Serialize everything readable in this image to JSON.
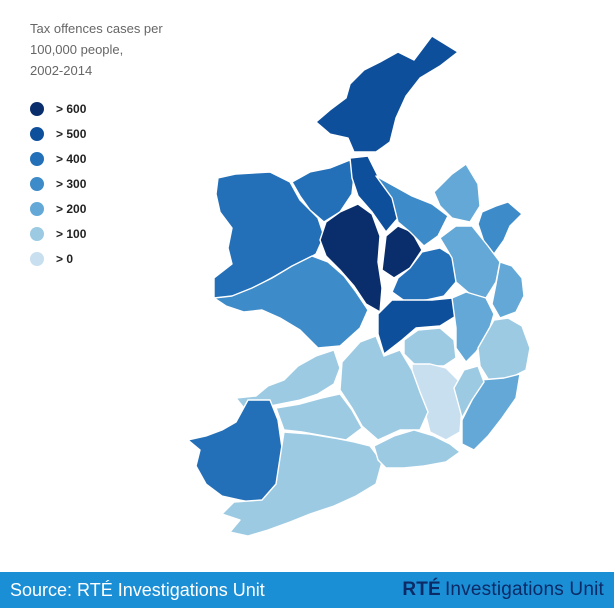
{
  "title_lines": [
    "Tax offences cases per",
    "100,000 people,",
    "2002-2014"
  ],
  "legend": [
    {
      "label": "> 600",
      "color": "#0a2e6b"
    },
    {
      "label": "> 500",
      "color": "#0e4f9c"
    },
    {
      "label": "> 400",
      "color": "#2370b8"
    },
    {
      "label": "> 300",
      "color": "#3d8bc8"
    },
    {
      "label": "> 200",
      "color": "#63a8d6"
    },
    {
      "label": "> 100",
      "color": "#9ccae2"
    },
    {
      "label": "> 0",
      "color": "#c8dff0"
    }
  ],
  "regions": [
    {
      "name": "donegal",
      "bin": 1
    },
    {
      "name": "mayo",
      "bin": 2
    },
    {
      "name": "sligo",
      "bin": 2
    },
    {
      "name": "leitrim",
      "bin": 1
    },
    {
      "name": "roscommon",
      "bin": 0
    },
    {
      "name": "longford",
      "bin": 0
    },
    {
      "name": "westmeath",
      "bin": 2
    },
    {
      "name": "galway",
      "bin": 3
    },
    {
      "name": "offaly",
      "bin": 1
    },
    {
      "name": "cavan",
      "bin": 3
    },
    {
      "name": "monaghan",
      "bin": 4
    },
    {
      "name": "louth",
      "bin": 3
    },
    {
      "name": "meath",
      "bin": 4
    },
    {
      "name": "dublin",
      "bin": 4
    },
    {
      "name": "kildare",
      "bin": 4
    },
    {
      "name": "wicklow",
      "bin": 5
    },
    {
      "name": "laois",
      "bin": 5
    },
    {
      "name": "carlow",
      "bin": 6
    },
    {
      "name": "wexford",
      "bin": 4
    },
    {
      "name": "kilkenny",
      "bin": 5
    },
    {
      "name": "tipperary",
      "bin": 5
    },
    {
      "name": "clare",
      "bin": 5
    },
    {
      "name": "limerick",
      "bin": 5
    },
    {
      "name": "kerry",
      "bin": 2
    },
    {
      "name": "cork",
      "bin": 5
    },
    {
      "name": "waterford",
      "bin": 5
    }
  ],
  "footer": {
    "source": "Source: RTÉ Investigations Unit",
    "brand_logo": "RTÉ",
    "brand_text": "Investigations Unit"
  }
}
